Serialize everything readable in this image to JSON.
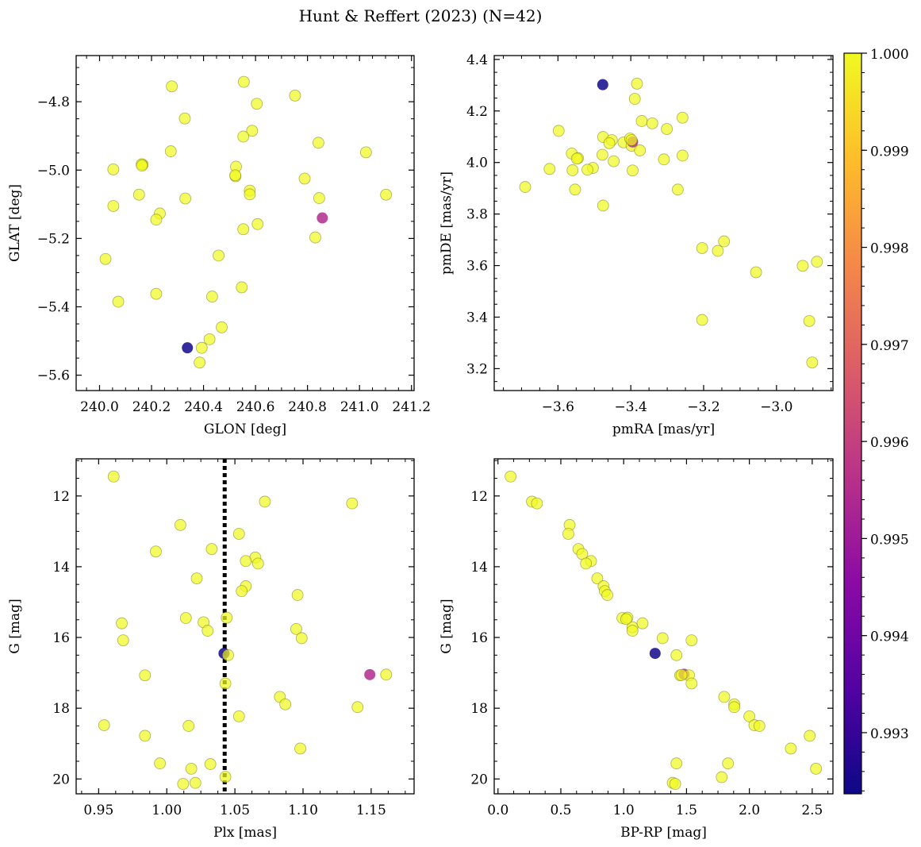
{
  "figure": {
    "title": "Hunt & Reffert (2023) (N=42)"
  },
  "colorbar": {
    "colormap": "plasma",
    "range": [
      0.99237,
      1.0
    ],
    "ticks": [
      0.993,
      0.994,
      0.995,
      0.996,
      0.997,
      0.998,
      0.999,
      1.0
    ],
    "tick_labels": [
      "0.993",
      "0.994",
      "0.995",
      "0.996",
      "0.997",
      "0.998",
      "0.999",
      "1.000"
    ]
  },
  "chart_data": [
    {
      "type": "scatter",
      "xlabel": "GLON [deg]",
      "ylabel": "GLAT [deg]",
      "xlim": [
        239.91,
        241.21
      ],
      "ylim": [
        -5.645,
        -4.665
      ],
      "xticks": [
        240.0,
        240.2,
        240.4,
        240.6,
        240.8,
        241.0,
        241.2
      ],
      "xtick_labels": [
        "240.0",
        "240.2",
        "240.4",
        "240.6",
        "240.8",
        "241.0",
        "241.2"
      ],
      "yticks": [
        -5.6,
        -5.4,
        -5.2,
        -5.0,
        -4.8
      ],
      "ytick_labels": [
        "−5.6",
        "−5.4",
        "−5.2",
        "−5.0",
        "−4.8"
      ],
      "points": [
        [
          240.278,
          -4.755,
          1.0
        ],
        [
          240.555,
          -4.742,
          1.0
        ],
        [
          240.752,
          -4.782,
          1.0
        ],
        [
          240.605,
          -4.806,
          1.0
        ],
        [
          240.328,
          -4.849,
          1.0
        ],
        [
          240.587,
          -4.885,
          1.0
        ],
        [
          240.553,
          -4.902,
          1.0
        ],
        [
          240.842,
          -4.92,
          1.0
        ],
        [
          240.274,
          -4.945,
          1.0
        ],
        [
          241.025,
          -4.948,
          1.0
        ],
        [
          240.166,
          -4.984,
          1.0
        ],
        [
          240.053,
          -4.998,
          1.0
        ],
        [
          240.525,
          -4.99,
          1.0
        ],
        [
          240.523,
          -5.018,
          1.0
        ],
        [
          240.789,
          -5.025,
          1.0
        ],
        [
          240.578,
          -5.06,
          1.0
        ],
        [
          240.578,
          -5.071,
          1.0
        ],
        [
          240.152,
          -5.072,
          1.0
        ],
        [
          241.102,
          -5.072,
          1.0
        ],
        [
          240.845,
          -5.082,
          1.0
        ],
        [
          240.33,
          -5.083,
          1.0
        ],
        [
          240.053,
          -5.105,
          1.0
        ],
        [
          240.232,
          -5.127,
          1.0
        ],
        [
          240.218,
          -5.145,
          1.0
        ],
        [
          240.857,
          -5.14,
          0.99545
        ],
        [
          240.608,
          -5.158,
          1.0
        ],
        [
          240.553,
          -5.173,
          1.0
        ],
        [
          240.83,
          -5.197,
          1.0
        ],
        [
          240.458,
          -5.25,
          1.0
        ],
        [
          240.023,
          -5.26,
          1.0
        ],
        [
          240.547,
          -5.343,
          1.0
        ],
        [
          240.218,
          -5.362,
          1.0
        ],
        [
          240.433,
          -5.37,
          1.0
        ],
        [
          240.072,
          -5.385,
          1.0
        ],
        [
          240.47,
          -5.46,
          1.0
        ],
        [
          240.423,
          -5.495,
          1.0
        ],
        [
          240.338,
          -5.52,
          0.99245
        ],
        [
          240.393,
          -5.52,
          1.0
        ],
        [
          240.385,
          -5.563,
          1.0
        ],
        [
          240.162,
          -4.983,
          1.0
        ],
        [
          240.522,
          -5.015,
          1.0
        ],
        [
          240.163,
          -4.987,
          1.0
        ]
      ]
    },
    {
      "type": "scatter",
      "xlabel": "pmRA [mas/yr]",
      "ylabel": "pmDE [mas/yr]",
      "xlim": [
        -3.775,
        -2.845
      ],
      "ylim": [
        3.115,
        4.415
      ],
      "xticks": [
        -3.6,
        -3.4,
        -3.2,
        -3.0
      ],
      "xtick_labels": [
        "−3.6",
        "−3.4",
        "−3.2",
        "−3.0"
      ],
      "yticks": [
        3.2,
        3.4,
        3.6,
        3.8,
        4.0,
        4.2,
        4.4
      ],
      "ytick_labels": [
        "3.2",
        "3.4",
        "3.6",
        "3.8",
        "4.0",
        "4.2",
        "4.4"
      ],
      "points": [
        [
          -3.477,
          4.302,
          0.99245
        ],
        [
          -3.383,
          4.306,
          1.0
        ],
        [
          -3.389,
          4.247,
          1.0
        ],
        [
          -3.598,
          4.123,
          1.0
        ],
        [
          -3.37,
          4.161,
          1.0
        ],
        [
          -3.341,
          4.152,
          1.0
        ],
        [
          -3.258,
          4.174,
          1.0
        ],
        [
          -3.476,
          4.099,
          1.0
        ],
        [
          -3.452,
          4.087,
          1.0
        ],
        [
          -3.42,
          4.078,
          1.0
        ],
        [
          -3.402,
          4.093,
          1.0
        ],
        [
          -3.459,
          4.075,
          1.0
        ],
        [
          -3.398,
          4.065,
          1.0
        ],
        [
          -3.301,
          4.13,
          1.0
        ],
        [
          -3.375,
          4.047,
          1.0
        ],
        [
          -3.562,
          4.035,
          1.0
        ],
        [
          -3.545,
          4.017,
          1.0
        ],
        [
          -3.478,
          4.03,
          1.0
        ],
        [
          -3.548,
          4.015,
          1.0
        ],
        [
          -3.258,
          4.027,
          1.0
        ],
        [
          -3.309,
          4.012,
          1.0
        ],
        [
          -3.447,
          4.005,
          1.0
        ],
        [
          -3.504,
          3.979,
          1.0
        ],
        [
          -3.519,
          3.972,
          1.0
        ],
        [
          -3.56,
          3.97,
          1.0
        ],
        [
          -3.623,
          3.975,
          1.0
        ],
        [
          -3.395,
          3.969,
          1.0
        ],
        [
          -3.69,
          3.905,
          1.0
        ],
        [
          -3.553,
          3.895,
          1.0
        ],
        [
          -3.271,
          3.895,
          1.0
        ],
        [
          -3.476,
          3.833,
          1.0
        ],
        [
          -3.395,
          4.08,
          0.99545
        ],
        [
          -3.204,
          3.668,
          1.0
        ],
        [
          -3.161,
          3.657,
          1.0
        ],
        [
          -3.144,
          3.694,
          1.0
        ],
        [
          -3.056,
          3.574,
          1.0
        ],
        [
          -2.928,
          3.599,
          1.0
        ],
        [
          -2.889,
          3.615,
          1.0
        ],
        [
          -3.204,
          3.389,
          1.0
        ],
        [
          -2.91,
          3.385,
          1.0
        ],
        [
          -2.902,
          3.224,
          1.0
        ],
        [
          -3.398,
          4.087,
          1.0
        ]
      ]
    },
    {
      "type": "scatter",
      "xlabel": "Plx [mas]",
      "ylabel": "G [mag]",
      "xlim": [
        0.9335,
        1.1815
      ],
      "ylim": [
        20.42,
        10.95
      ],
      "xticks": [
        0.95,
        1.0,
        1.05,
        1.1,
        1.15
      ],
      "xtick_labels": [
        "0.95",
        "1.00",
        "1.05",
        "1.10",
        "1.15"
      ],
      "yticks": [
        12,
        14,
        16,
        18,
        20
      ],
      "ytick_labels": [
        "12",
        "14",
        "16",
        "18",
        "20"
      ],
      "vline": {
        "x": 1.0425,
        "style": "dotted"
      },
      "points": [
        [
          0.961,
          11.45,
          1.0
        ],
        [
          1.072,
          12.16,
          1.0
        ],
        [
          1.136,
          12.21,
          1.0
        ],
        [
          1.01,
          12.82,
          1.0
        ],
        [
          1.053,
          13.07,
          1.0
        ],
        [
          0.992,
          13.57,
          1.0
        ],
        [
          1.033,
          13.5,
          1.0
        ],
        [
          1.065,
          13.74,
          1.0
        ],
        [
          1.058,
          13.84,
          1.0
        ],
        [
          1.067,
          13.91,
          1.0
        ],
        [
          1.022,
          14.33,
          1.0
        ],
        [
          1.058,
          14.55,
          1.0
        ],
        [
          1.055,
          14.69,
          1.0
        ],
        [
          1.096,
          14.8,
          1.0
        ],
        [
          1.014,
          15.45,
          1.0
        ],
        [
          1.044,
          15.44,
          1.0
        ],
        [
          0.967,
          15.6,
          1.0
        ],
        [
          1.027,
          15.57,
          1.0
        ],
        [
          1.03,
          15.81,
          1.0
        ],
        [
          1.095,
          15.76,
          1.0
        ],
        [
          0.968,
          16.08,
          1.0
        ],
        [
          1.099,
          16.02,
          1.0
        ],
        [
          1.042,
          16.45,
          0.99245
        ],
        [
          1.045,
          16.5,
          1.0
        ],
        [
          0.984,
          17.07,
          1.0
        ],
        [
          1.149,
          17.05,
          0.99545
        ],
        [
          1.161,
          17.05,
          1.0
        ],
        [
          1.043,
          17.3,
          1.0
        ],
        [
          1.083,
          17.68,
          1.0
        ],
        [
          1.087,
          17.89,
          1.0
        ],
        [
          1.14,
          17.97,
          1.0
        ],
        [
          1.053,
          18.23,
          1.0
        ],
        [
          0.954,
          18.48,
          1.0
        ],
        [
          1.016,
          18.5,
          1.0
        ],
        [
          0.984,
          18.78,
          1.0
        ],
        [
          1.098,
          19.14,
          1.0
        ],
        [
          0.995,
          19.56,
          1.0
        ],
        [
          1.032,
          19.58,
          1.0
        ],
        [
          1.018,
          19.71,
          1.0
        ],
        [
          1.043,
          19.94,
          1.0
        ],
        [
          1.012,
          20.14,
          1.0
        ],
        [
          1.021,
          20.11,
          1.0
        ]
      ]
    },
    {
      "type": "scatter",
      "xlabel": "BP-RP [mag]",
      "ylabel": "G [mag]",
      "xlim": [
        -0.03,
        2.665
      ],
      "ylim": [
        20.42,
        10.95
      ],
      "xticks": [
        0.0,
        0.5,
        1.0,
        1.5,
        2.0,
        2.5
      ],
      "xtick_labels": [
        "0.0",
        "0.5",
        "1.0",
        "1.5",
        "2.0",
        "2.5"
      ],
      "yticks": [
        12,
        14,
        16,
        18,
        20
      ],
      "ytick_labels": [
        "12",
        "14",
        "16",
        "18",
        "20"
      ],
      "points": [
        [
          0.1,
          11.45,
          1.0
        ],
        [
          0.27,
          12.16,
          1.0
        ],
        [
          0.31,
          12.21,
          1.0
        ],
        [
          0.57,
          12.82,
          1.0
        ],
        [
          0.56,
          13.07,
          1.0
        ],
        [
          0.64,
          13.5,
          1.0
        ],
        [
          0.67,
          13.64,
          1.0
        ],
        [
          0.74,
          13.84,
          1.0
        ],
        [
          0.7,
          13.91,
          1.0
        ],
        [
          0.79,
          14.33,
          1.0
        ],
        [
          0.84,
          14.55,
          1.0
        ],
        [
          0.85,
          14.69,
          1.0
        ],
        [
          0.87,
          14.8,
          1.0
        ],
        [
          0.99,
          15.45,
          1.0
        ],
        [
          1.03,
          15.44,
          1.0
        ],
        [
          1.07,
          15.71,
          1.0
        ],
        [
          1.07,
          15.81,
          1.0
        ],
        [
          1.15,
          15.6,
          1.0
        ],
        [
          1.31,
          16.02,
          1.0
        ],
        [
          1.54,
          16.08,
          1.0
        ],
        [
          1.25,
          16.45,
          0.99245
        ],
        [
          1.42,
          16.5,
          1.0
        ],
        [
          1.45,
          17.07,
          1.0
        ],
        [
          1.48,
          17.04,
          0.99545
        ],
        [
          1.52,
          17.07,
          1.0
        ],
        [
          1.54,
          17.3,
          1.0
        ],
        [
          1.8,
          17.68,
          1.0
        ],
        [
          1.88,
          17.89,
          1.0
        ],
        [
          1.88,
          17.97,
          1.0
        ],
        [
          2.0,
          18.23,
          1.0
        ],
        [
          2.04,
          18.48,
          1.0
        ],
        [
          2.08,
          18.5,
          1.0
        ],
        [
          2.48,
          18.78,
          1.0
        ],
        [
          2.33,
          19.14,
          1.0
        ],
        [
          1.42,
          19.56,
          1.0
        ],
        [
          1.83,
          19.56,
          1.0
        ],
        [
          2.53,
          19.71,
          1.0
        ],
        [
          1.78,
          19.95,
          1.0
        ],
        [
          1.39,
          20.11,
          1.0
        ],
        [
          1.41,
          20.14,
          1.0
        ],
        [
          1.46,
          17.06,
          1.0
        ],
        [
          1.02,
          15.48,
          1.0
        ]
      ]
    }
  ]
}
